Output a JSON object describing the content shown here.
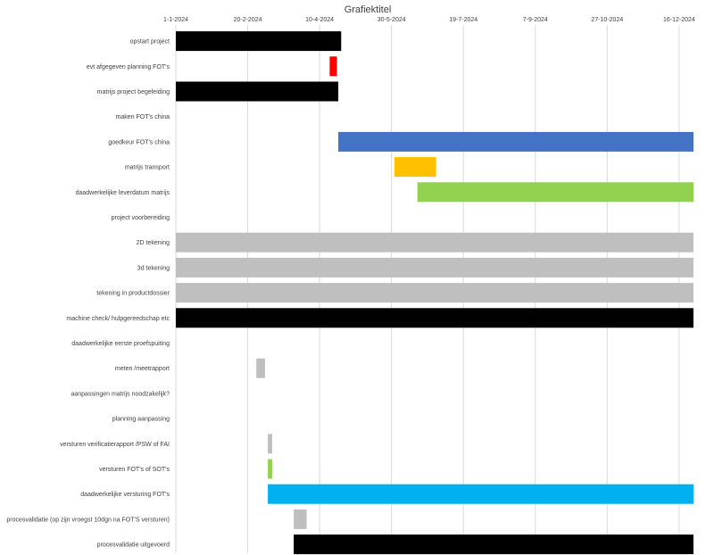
{
  "chart_data": {
    "type": "bar",
    "title": "Grafiektitel",
    "orientation": "horizontal",
    "x_ticks": [
      "1-1-2024",
      "20-2-2024",
      "10-4-2024",
      "30-5-2024",
      "19-7-2024",
      "7-9-2024",
      "27-10-2024",
      "16-12-2024"
    ],
    "xlim": [
      "1-1-2024",
      "26-12-2024"
    ],
    "grid": true,
    "legend": "none",
    "categories": [
      "opstart project",
      "evt afgegeven planning FOT's",
      "matrijs project begeleiding",
      "maken FOT's china",
      "goedkeur FOT's china",
      "matrijs transport",
      "daadwerkelijke leverdatum matrijs",
      "project voorbereiding",
      "2D tekening",
      "3d tekening",
      "tekening in productdossier",
      "machine check/ hulpgereedschap etc",
      "daadwerkelijke eerste proefspuiting",
      "meten /meetrapport",
      "aanpassingen matrijs noodzakelijk?",
      "planning aanpassing",
      "versturen verificatierapport /PSW of FAI",
      "versturen FOT's of SOT's",
      "daadwerkelijke versturing FOT's",
      "procesvalidatie (op zijn vroegst 10dgn na FOT'S versturen)",
      "procesvalidatie uitgevoerd"
    ],
    "series": [
      {
        "start": "1-1-2024",
        "end": "25-4-2024",
        "color": "#000000"
      },
      {
        "start": "17-4-2024",
        "end": "22-4-2024",
        "color": "#ff0000"
      },
      {
        "start": "1-1-2024",
        "end": "23-4-2024",
        "color": "#000000"
      },
      null,
      {
        "start": "23-4-2024",
        "end": "26-12-2024",
        "color": "#4472c4"
      },
      {
        "start": "1-6-2024",
        "end": "30-6-2024",
        "color": "#ffc000"
      },
      {
        "start": "17-6-2024",
        "end": "26-12-2024",
        "color": "#92d050"
      },
      null,
      {
        "start": "1-1-2024",
        "end": "26-12-2024",
        "color": "#bfbfbf"
      },
      {
        "start": "1-1-2024",
        "end": "26-12-2024",
        "color": "#bfbfbf"
      },
      {
        "start": "1-1-2024",
        "end": "26-12-2024",
        "color": "#bfbfbf"
      },
      {
        "start": "1-1-2024",
        "end": "26-12-2024",
        "color": "#000000"
      },
      null,
      {
        "start": "26-2-2024",
        "end": "3-3-2024",
        "color": "#bfbfbf"
      },
      null,
      null,
      {
        "start": "5-3-2024",
        "end": "8-3-2024",
        "color": "#bfbfbf"
      },
      {
        "start": "5-3-2024",
        "end": "8-3-2024",
        "color": "#92d050"
      },
      {
        "start": "5-3-2024",
        "end": "26-12-2024",
        "color": "#00b0f0"
      },
      {
        "start": "23-3-2024",
        "end": "1-4-2024",
        "color": "#bfbfbf"
      },
      {
        "start": "23-3-2024",
        "end": "26-12-2024",
        "color": "#000000"
      }
    ]
  }
}
